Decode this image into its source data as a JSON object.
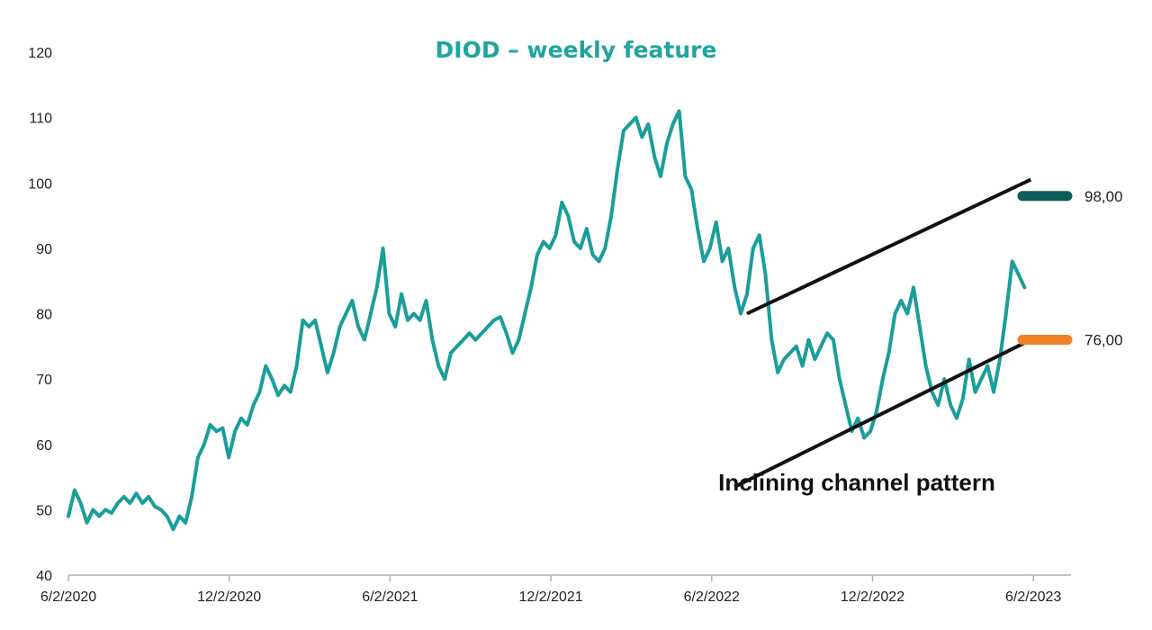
{
  "chart_data": {
    "type": "line",
    "title": "DIOD – weekly feature",
    "xlabel": "",
    "ylabel": "",
    "ylim": [
      40,
      120
    ],
    "yticks": [
      40,
      50,
      60,
      70,
      80,
      90,
      100,
      110,
      120
    ],
    "xticks": [
      "6/2/2020",
      "12/2/2020",
      "6/2/2021",
      "12/2/2021",
      "6/2/2022",
      "12/2/2022",
      "6/2/2023"
    ],
    "grid": false,
    "series": [
      {
        "color": "#1a9e9a",
        "points": [
          [
            "2020-06-02",
            49
          ],
          [
            "2020-06-09",
            53
          ],
          [
            "2020-06-16",
            51
          ],
          [
            "2020-06-23",
            48
          ],
          [
            "2020-06-30",
            50
          ],
          [
            "2020-07-07",
            49
          ],
          [
            "2020-07-14",
            50
          ],
          [
            "2020-07-21",
            49.5
          ],
          [
            "2020-07-28",
            51
          ],
          [
            "2020-08-04",
            52
          ],
          [
            "2020-08-11",
            51
          ],
          [
            "2020-08-18",
            52.5
          ],
          [
            "2020-08-25",
            51
          ],
          [
            "2020-09-01",
            52
          ],
          [
            "2020-09-08",
            50.5
          ],
          [
            "2020-09-15",
            50
          ],
          [
            "2020-09-22",
            49
          ],
          [
            "2020-09-29",
            47
          ],
          [
            "2020-10-06",
            49
          ],
          [
            "2020-10-13",
            48
          ],
          [
            "2020-10-20",
            52
          ],
          [
            "2020-10-27",
            58
          ],
          [
            "2020-11-03",
            60
          ],
          [
            "2020-11-10",
            63
          ],
          [
            "2020-11-17",
            62
          ],
          [
            "2020-11-24",
            62.5
          ],
          [
            "2020-12-01",
            58
          ],
          [
            "2020-12-08",
            62
          ],
          [
            "2020-12-15",
            64
          ],
          [
            "2020-12-22",
            63
          ],
          [
            "2020-12-29",
            66
          ],
          [
            "2021-01-05",
            68
          ],
          [
            "2021-01-12",
            72
          ],
          [
            "2021-01-19",
            70
          ],
          [
            "2021-01-26",
            67.5
          ],
          [
            "2021-02-02",
            69
          ],
          [
            "2021-02-09",
            68
          ],
          [
            "2021-02-16",
            72
          ],
          [
            "2021-02-23",
            79
          ],
          [
            "2021-03-02",
            78
          ],
          [
            "2021-03-09",
            79
          ],
          [
            "2021-03-16",
            75
          ],
          [
            "2021-03-23",
            71
          ],
          [
            "2021-03-30",
            74
          ],
          [
            "2021-04-06",
            78
          ],
          [
            "2021-04-13",
            80
          ],
          [
            "2021-04-20",
            82
          ],
          [
            "2021-04-27",
            78
          ],
          [
            "2021-05-04",
            76
          ],
          [
            "2021-05-11",
            80
          ],
          [
            "2021-05-18",
            84
          ],
          [
            "2021-05-25",
            90
          ],
          [
            "2021-06-01",
            80
          ],
          [
            "2021-06-08",
            78
          ],
          [
            "2021-06-15",
            83
          ],
          [
            "2021-06-22",
            79
          ],
          [
            "2021-06-29",
            80
          ],
          [
            "2021-07-06",
            79
          ],
          [
            "2021-07-13",
            82
          ],
          [
            "2021-07-20",
            76
          ],
          [
            "2021-07-27",
            72
          ],
          [
            "2021-08-03",
            70
          ],
          [
            "2021-08-10",
            74
          ],
          [
            "2021-08-17",
            75
          ],
          [
            "2021-08-24",
            76
          ],
          [
            "2021-08-31",
            77
          ],
          [
            "2021-09-07",
            76
          ],
          [
            "2021-09-14",
            77
          ],
          [
            "2021-09-21",
            78
          ],
          [
            "2021-09-28",
            79
          ],
          [
            "2021-10-05",
            79.5
          ],
          [
            "2021-10-12",
            77
          ],
          [
            "2021-10-19",
            74
          ],
          [
            "2021-10-26",
            76
          ],
          [
            "2021-11-02",
            80
          ],
          [
            "2021-11-09",
            84
          ],
          [
            "2021-11-16",
            89
          ],
          [
            "2021-11-23",
            91
          ],
          [
            "2021-11-30",
            90
          ],
          [
            "2021-12-07",
            92
          ],
          [
            "2021-12-14",
            97
          ],
          [
            "2021-12-21",
            95
          ],
          [
            "2021-12-28",
            91
          ],
          [
            "2022-01-04",
            90
          ],
          [
            "2022-01-11",
            93
          ],
          [
            "2022-01-18",
            89
          ],
          [
            "2022-01-25",
            88
          ],
          [
            "2022-02-01",
            90
          ],
          [
            "2022-02-08",
            95
          ],
          [
            "2022-02-15",
            102
          ],
          [
            "2022-02-22",
            108
          ],
          [
            "2022-03-01",
            109
          ],
          [
            "2022-03-08",
            110
          ],
          [
            "2022-03-15",
            107
          ],
          [
            "2022-03-22",
            109
          ],
          [
            "2022-03-29",
            104
          ],
          [
            "2022-04-05",
            101
          ],
          [
            "2022-04-12",
            106
          ],
          [
            "2022-04-19",
            109
          ],
          [
            "2022-04-26",
            111
          ],
          [
            "2022-05-03",
            101
          ],
          [
            "2022-05-10",
            99
          ],
          [
            "2022-05-17",
            93
          ],
          [
            "2022-05-24",
            88
          ],
          [
            "2022-05-31",
            90
          ],
          [
            "2022-06-07",
            94
          ],
          [
            "2022-06-14",
            88
          ],
          [
            "2022-06-21",
            90
          ],
          [
            "2022-06-28",
            84
          ],
          [
            "2022-07-05",
            80
          ],
          [
            "2022-07-12",
            83
          ],
          [
            "2022-07-19",
            90
          ],
          [
            "2022-07-26",
            92
          ],
          [
            "2022-08-02",
            86
          ],
          [
            "2022-08-09",
            76
          ],
          [
            "2022-08-16",
            71
          ],
          [
            "2022-08-23",
            73
          ],
          [
            "2022-08-30",
            74
          ],
          [
            "2022-09-06",
            75
          ],
          [
            "2022-09-13",
            72
          ],
          [
            "2022-09-20",
            76
          ],
          [
            "2022-09-27",
            73
          ],
          [
            "2022-10-04",
            75
          ],
          [
            "2022-10-11",
            77
          ],
          [
            "2022-10-18",
            76
          ],
          [
            "2022-10-25",
            70
          ],
          [
            "2022-11-01",
            66
          ],
          [
            "2022-11-08",
            62
          ],
          [
            "2022-11-15",
            64
          ],
          [
            "2022-11-22",
            61
          ],
          [
            "2022-11-29",
            62
          ],
          [
            "2022-12-06",
            65
          ],
          [
            "2022-12-13",
            70
          ],
          [
            "2022-12-20",
            74
          ],
          [
            "2022-12-27",
            80
          ],
          [
            "2023-01-03",
            82
          ],
          [
            "2023-01-10",
            80
          ],
          [
            "2023-01-17",
            84
          ],
          [
            "2023-01-24",
            78
          ],
          [
            "2023-01-31",
            72
          ],
          [
            "2023-02-07",
            68
          ],
          [
            "2023-02-14",
            66
          ],
          [
            "2023-02-21",
            70
          ],
          [
            "2023-02-28",
            66
          ],
          [
            "2023-03-07",
            64
          ],
          [
            "2023-03-14",
            67
          ],
          [
            "2023-03-21",
            73
          ],
          [
            "2023-03-28",
            68
          ],
          [
            "2023-04-04",
            70
          ],
          [
            "2023-04-11",
            72
          ],
          [
            "2023-04-18",
            68
          ],
          [
            "2023-04-25",
            73
          ],
          [
            "2023-05-02",
            80
          ],
          [
            "2023-05-09",
            88
          ],
          [
            "2023-05-16",
            86
          ],
          [
            "2023-05-23",
            84
          ]
        ]
      }
    ],
    "channel_lines": {
      "upper": [
        [
          "2022-07-12",
          80
        ],
        [
          "2023-05-30",
          100.5
        ]
      ],
      "lower": [
        [
          "2022-06-28",
          53.5
        ],
        [
          "2023-05-30",
          76
        ]
      ]
    },
    "levels": [
      {
        "value": 98,
        "label": "98,00",
        "color": "#0e5c5c"
      },
      {
        "value": 76,
        "label": "76,00",
        "color": "#f08126"
      }
    ],
    "annotation": "Inclining channel pattern",
    "colors": {
      "line": "#1a9e9a",
      "title": "#1fa5a0",
      "channel": "#111111"
    }
  }
}
